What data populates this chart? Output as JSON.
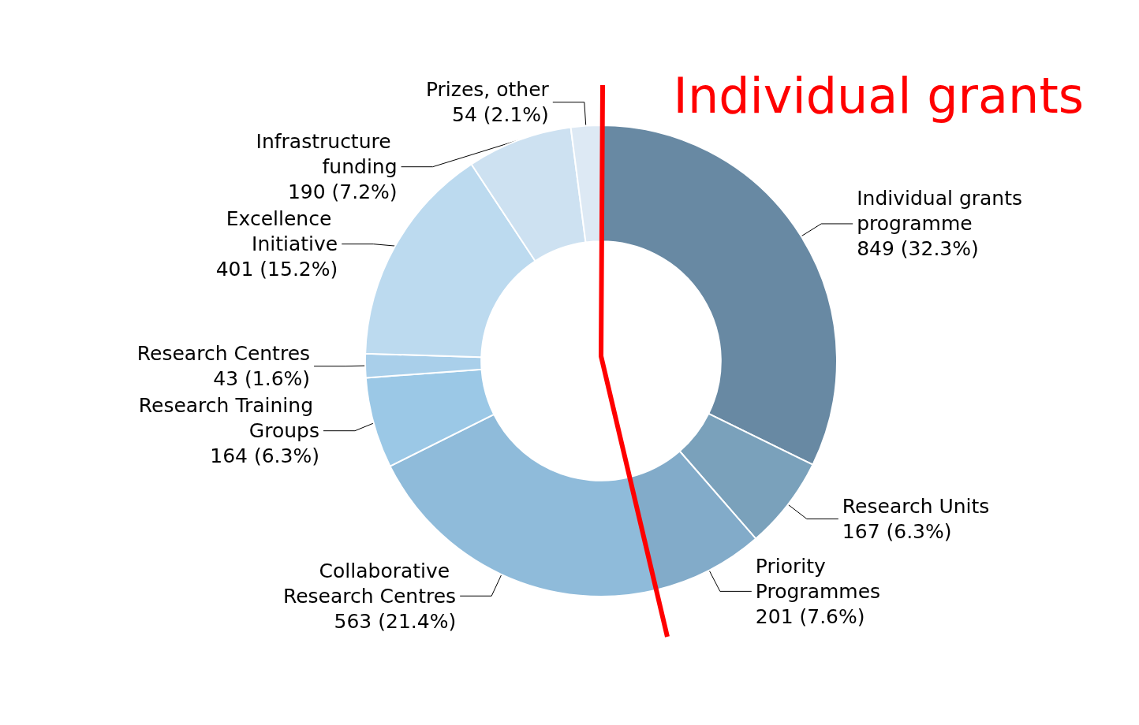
{
  "chart_data": {
    "type": "donut",
    "categories": [
      "Individual grants programme",
      "Research Units",
      "Priority Programmes",
      "Collaborative Research Centres",
      "Research Training Groups",
      "Research Centres",
      "Excellence Initiative",
      "Infrastructure funding",
      "Prizes, other"
    ],
    "values": [
      849,
      167,
      201,
      563,
      164,
      43,
      401,
      190,
      54
    ],
    "value_labels": [
      "849 (32.3%)",
      "167 (6.3%)",
      "201 (7.6%)",
      "563 (21.4%)",
      "164 (6.3%)",
      "43 (1.6%)",
      "401 (15.2%)",
      "190 (7.2%)",
      "54 (2.1%)"
    ],
    "colors": [
      "#6889a3",
      "#7aa1bb",
      "#82abc9",
      "#8fbbda",
      "#9bc8e6",
      "#a9cfea",
      "#bcdaef",
      "#cde1f1",
      "#dde9f4"
    ],
    "annotations": [
      "Individual grants"
    ],
    "legend": false
  }
}
